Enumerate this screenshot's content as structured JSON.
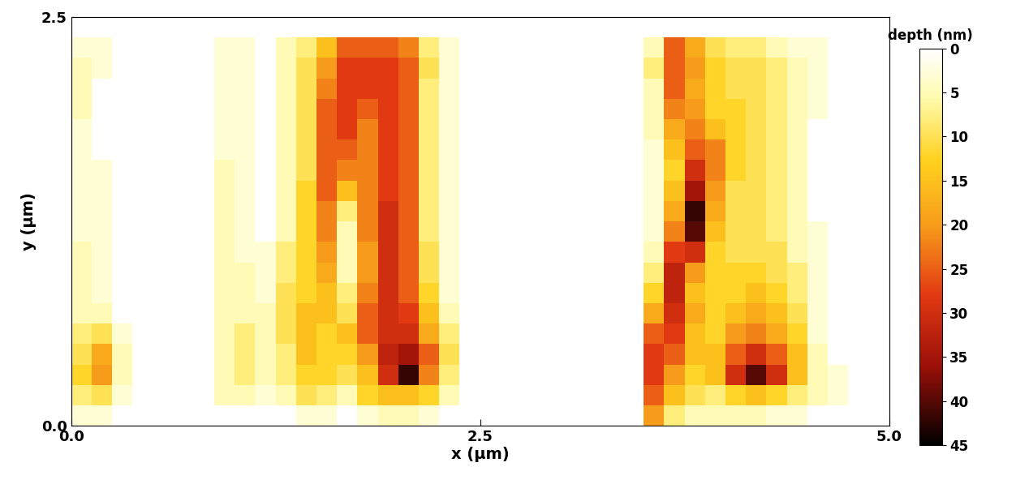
{
  "chart_data": {
    "type": "heatmap",
    "x_label": "x (µm)",
    "y_label": "y (µm)",
    "xlim": [
      0.0,
      5.0
    ],
    "ylim": [
      0.0,
      2.5
    ],
    "xticks": [
      0.0,
      2.5,
      5.0
    ],
    "yticks": [
      0.0,
      2.5
    ],
    "colorbar_label": "depth (nm)",
    "colorbar_range": [
      0,
      45
    ],
    "colorbar_ticks": [
      0,
      5,
      10,
      15,
      20,
      25,
      30,
      35,
      40,
      45
    ],
    "cells": [
      [
        3,
        3,
        0,
        0,
        0,
        0,
        0,
        0,
        0,
        0,
        0,
        3,
        3,
        0,
        3,
        5,
        5,
        3,
        0,
        0,
        0,
        0,
        0,
        0,
        0,
        0,
        0,
        0,
        20,
        8,
        5,
        5,
        5,
        5,
        3,
        3,
        0,
        0,
        0,
        0
      ],
      [
        8,
        10,
        3,
        0,
        0,
        0,
        0,
        5,
        5,
        3,
        5,
        10,
        8,
        5,
        12,
        15,
        15,
        12,
        5,
        0,
        0,
        0,
        0,
        0,
        0,
        0,
        0,
        0,
        25,
        15,
        10,
        8,
        12,
        15,
        12,
        8,
        5,
        3,
        0,
        0
      ],
      [
        12,
        20,
        5,
        0,
        0,
        0,
        0,
        5,
        8,
        5,
        8,
        12,
        12,
        10,
        15,
        30,
        42,
        22,
        8,
        0,
        0,
        0,
        0,
        0,
        0,
        0,
        0,
        0,
        28,
        20,
        12,
        15,
        30,
        40,
        30,
        15,
        5,
        3,
        0,
        0
      ],
      [
        10,
        18,
        5,
        0,
        0,
        0,
        0,
        5,
        8,
        5,
        8,
        15,
        12,
        12,
        20,
        32,
        35,
        25,
        10,
        0,
        0,
        0,
        0,
        0,
        0,
        0,
        0,
        0,
        28,
        25,
        15,
        15,
        25,
        30,
        25,
        15,
        5,
        0,
        0,
        0
      ],
      [
        8,
        10,
        3,
        0,
        0,
        0,
        0,
        5,
        8,
        5,
        10,
        15,
        12,
        15,
        25,
        30,
        30,
        18,
        8,
        0,
        0,
        0,
        0,
        0,
        0,
        0,
        0,
        0,
        25,
        28,
        15,
        12,
        20,
        22,
        18,
        12,
        3,
        0,
        0,
        0
      ],
      [
        5,
        5,
        0,
        0,
        0,
        0,
        0,
        5,
        5,
        5,
        10,
        15,
        15,
        10,
        25,
        30,
        28,
        15,
        5,
        0,
        0,
        0,
        0,
        0,
        0,
        0,
        0,
        0,
        18,
        30,
        18,
        12,
        15,
        18,
        15,
        10,
        3,
        0,
        0,
        0
      ],
      [
        5,
        3,
        0,
        0,
        0,
        0,
        0,
        5,
        5,
        3,
        10,
        12,
        15,
        8,
        22,
        30,
        25,
        12,
        3,
        0,
        0,
        0,
        0,
        0,
        0,
        0,
        0,
        0,
        12,
        32,
        15,
        12,
        12,
        15,
        12,
        8,
        3,
        0,
        0,
        0
      ],
      [
        5,
        3,
        0,
        0,
        0,
        0,
        0,
        5,
        5,
        3,
        8,
        12,
        18,
        5,
        20,
        30,
        25,
        10,
        3,
        0,
        0,
        0,
        0,
        0,
        0,
        0,
        0,
        0,
        8,
        32,
        20,
        12,
        12,
        12,
        10,
        8,
        3,
        0,
        0,
        0
      ],
      [
        5,
        3,
        0,
        0,
        0,
        0,
        0,
        5,
        3,
        3,
        8,
        12,
        20,
        5,
        20,
        30,
        25,
        10,
        3,
        0,
        0,
        0,
        0,
        0,
        0,
        0,
        0,
        0,
        5,
        28,
        30,
        12,
        10,
        10,
        10,
        5,
        3,
        0,
        0,
        0
      ],
      [
        3,
        3,
        0,
        0,
        0,
        0,
        0,
        5,
        3,
        0,
        5,
        12,
        22,
        5,
        22,
        30,
        25,
        8,
        3,
        0,
        0,
        0,
        0,
        0,
        0,
        0,
        0,
        0,
        3,
        22,
        40,
        15,
        10,
        10,
        8,
        5,
        3,
        0,
        0,
        0
      ],
      [
        3,
        3,
        0,
        0,
        0,
        0,
        0,
        5,
        3,
        0,
        5,
        12,
        22,
        8,
        22,
        30,
        25,
        8,
        3,
        0,
        0,
        0,
        0,
        0,
        0,
        0,
        0,
        0,
        3,
        18,
        42,
        18,
        10,
        10,
        8,
        5,
        0,
        0,
        0,
        0
      ],
      [
        3,
        3,
        0,
        0,
        0,
        0,
        0,
        5,
        3,
        0,
        5,
        12,
        25,
        15,
        22,
        28,
        25,
        8,
        3,
        0,
        0,
        0,
        0,
        0,
        0,
        0,
        0,
        0,
        3,
        15,
        35,
        20,
        10,
        10,
        8,
        5,
        0,
        0,
        0,
        0
      ],
      [
        3,
        3,
        0,
        0,
        0,
        0,
        0,
        5,
        3,
        0,
        5,
        10,
        25,
        22,
        22,
        28,
        25,
        8,
        3,
        0,
        0,
        0,
        0,
        0,
        0,
        0,
        0,
        0,
        3,
        12,
        30,
        22,
        12,
        10,
        8,
        5,
        0,
        0,
        0,
        0
      ],
      [
        3,
        0,
        0,
        0,
        0,
        0,
        0,
        3,
        3,
        0,
        5,
        10,
        25,
        25,
        22,
        28,
        25,
        8,
        3,
        0,
        0,
        0,
        0,
        0,
        0,
        0,
        0,
        0,
        3,
        15,
        25,
        22,
        12,
        10,
        8,
        5,
        0,
        0,
        0,
        0
      ],
      [
        3,
        0,
        0,
        0,
        0,
        0,
        0,
        3,
        3,
        0,
        5,
        10,
        25,
        28,
        22,
        28,
        25,
        8,
        3,
        0,
        0,
        0,
        0,
        0,
        0,
        0,
        0,
        0,
        5,
        18,
        22,
        15,
        12,
        10,
        8,
        5,
        0,
        0,
        0,
        0
      ],
      [
        5,
        0,
        0,
        0,
        0,
        0,
        0,
        3,
        3,
        0,
        5,
        10,
        25,
        28,
        25,
        28,
        25,
        8,
        3,
        0,
        0,
        0,
        0,
        0,
        0,
        0,
        0,
        0,
        5,
        22,
        20,
        12,
        12,
        10,
        8,
        5,
        3,
        0,
        0,
        0
      ],
      [
        5,
        0,
        0,
        0,
        0,
        0,
        0,
        3,
        3,
        0,
        5,
        10,
        22,
        28,
        28,
        28,
        25,
        8,
        3,
        0,
        0,
        0,
        0,
        0,
        0,
        0,
        0,
        0,
        5,
        25,
        18,
        12,
        10,
        10,
        8,
        5,
        3,
        0,
        0,
        0
      ],
      [
        5,
        3,
        0,
        0,
        0,
        0,
        0,
        3,
        3,
        0,
        5,
        10,
        20,
        28,
        28,
        28,
        25,
        10,
        3,
        0,
        0,
        0,
        0,
        0,
        0,
        0,
        0,
        0,
        8,
        25,
        20,
        12,
        10,
        10,
        8,
        5,
        3,
        0,
        0,
        0
      ],
      [
        3,
        3,
        0,
        0,
        0,
        0,
        0,
        3,
        3,
        0,
        5,
        8,
        15,
        25,
        25,
        25,
        22,
        8,
        3,
        0,
        0,
        0,
        0,
        0,
        0,
        0,
        0,
        0,
        5,
        25,
        18,
        10,
        8,
        8,
        5,
        3,
        3,
        0,
        0,
        0
      ],
      [
        0,
        0,
        0,
        0,
        0,
        0,
        0,
        0,
        0,
        0,
        0,
        0,
        0,
        0,
        0,
        0,
        0,
        0,
        0,
        0,
        0,
        0,
        0,
        0,
        0,
        0,
        0,
        0,
        0,
        0,
        0,
        0,
        0,
        0,
        0,
        0,
        0,
        0,
        0,
        0
      ]
    ]
  }
}
